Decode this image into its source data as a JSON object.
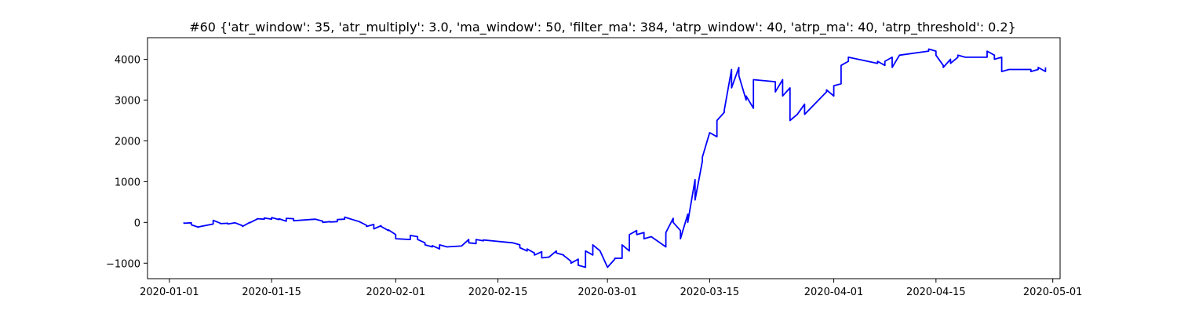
{
  "chart_data": {
    "type": "line",
    "title": "#60 {'atr_window': 35, 'atr_multiply': 3.0, 'ma_window': 50, 'filter_ma': 384, 'atrp_window': 40, 'atrp_ma': 40, 'atrp_threshold': 0.2}",
    "xlabel": "",
    "ylabel": "",
    "line_color": "#0000ff",
    "grid": false,
    "xlim": [
      "2019-12-29",
      "2020-05-02"
    ],
    "ylim": [
      -1380,
      4530
    ],
    "x_ticks": [
      "2020-01-01",
      "2020-01-15",
      "2020-02-01",
      "2020-02-15",
      "2020-03-01",
      "2020-03-15",
      "2020-04-01",
      "2020-04-15",
      "2020-05-01"
    ],
    "y_ticks": [
      -1000,
      0,
      1000,
      2000,
      3000,
      4000
    ],
    "y_tick_labels": [
      "−1000",
      "0",
      "1000",
      "2000",
      "3000",
      "4000"
    ],
    "series": [
      {
        "x": [
          "2020-01-03",
          "2020-01-03",
          "2020-01-04",
          "2020-01-04",
          "2020-01-05",
          "2020-01-05",
          "2020-01-07",
          "2020-01-07",
          "2020-01-08",
          "2020-01-08",
          "2020-01-09",
          "2020-01-09",
          "2020-01-10",
          "2020-01-11",
          "2020-01-11",
          "2020-01-12",
          "2020-01-12",
          "2020-01-13",
          "2020-01-13",
          "2020-01-14",
          "2020-01-14",
          "2020-01-15",
          "2020-01-15",
          "2020-01-16",
          "2020-01-16",
          "2020-01-17",
          "2020-01-17",
          "2020-01-18",
          "2020-01-18",
          "2020-01-21",
          "2020-01-22",
          "2020-01-22",
          "2020-01-23",
          "2020-01-23",
          "2020-01-24",
          "2020-01-24",
          "2020-01-25",
          "2020-01-25",
          "2020-01-27",
          "2020-01-28",
          "2020-01-28",
          "2020-01-29",
          "2020-01-29",
          "2020-01-30",
          "2020-01-30",
          "2020-01-31",
          "2020-01-31",
          "2020-02-01",
          "2020-02-01",
          "2020-02-03",
          "2020-02-03",
          "2020-02-04",
          "2020-02-04",
          "2020-02-05",
          "2020-02-05",
          "2020-02-06",
          "2020-02-06",
          "2020-02-07",
          "2020-02-07",
          "2020-02-08",
          "2020-02-10",
          "2020-02-11",
          "2020-02-11",
          "2020-02-12",
          "2020-02-12",
          "2020-02-13",
          "2020-02-13",
          "2020-02-17",
          "2020-02-18",
          "2020-02-18",
          "2020-02-19",
          "2020-02-19",
          "2020-02-20",
          "2020-02-20",
          "2020-02-21",
          "2020-02-21",
          "2020-02-22",
          "2020-02-23",
          "2020-02-23",
          "2020-02-24",
          "2020-02-24",
          "2020-02-25",
          "2020-02-25",
          "2020-02-26",
          "2020-02-26",
          "2020-02-27",
          "2020-02-27",
          "2020-02-28",
          "2020-02-28",
          "2020-02-29",
          "2020-03-01",
          "2020-03-02",
          "2020-03-02",
          "2020-03-03",
          "2020-03-03",
          "2020-03-04",
          "2020-03-04",
          "2020-03-05",
          "2020-03-05",
          "2020-03-06",
          "2020-03-06",
          "2020-03-07",
          "2020-03-09",
          "2020-03-09",
          "2020-03-10",
          "2020-03-10",
          "2020-03-11",
          "2020-03-11",
          "2020-03-12",
          "2020-03-12",
          "2020-03-13",
          "2020-03-13",
          "2020-03-14",
          "2020-03-14",
          "2020-03-15",
          "2020-03-16",
          "2020-03-16",
          "2020-03-17",
          "2020-03-17",
          "2020-03-18",
          "2020-03-18",
          "2020-03-19",
          "2020-03-19",
          "2020-03-20",
          "2020-03-20",
          "2020-03-21",
          "2020-03-21",
          "2020-03-24",
          "2020-03-24",
          "2020-03-25",
          "2020-03-25",
          "2020-03-26",
          "2020-03-26",
          "2020-03-27",
          "2020-03-27",
          "2020-03-28",
          "2020-03-28",
          "2020-03-31",
          "2020-03-31",
          "2020-04-01",
          "2020-04-01",
          "2020-04-02",
          "2020-04-02",
          "2020-04-03",
          "2020-04-03",
          "2020-04-07",
          "2020-04-07",
          "2020-04-08",
          "2020-04-08",
          "2020-04-09",
          "2020-04-09",
          "2020-04-10",
          "2020-04-14",
          "2020-04-14",
          "2020-04-15",
          "2020-04-15",
          "2020-04-16",
          "2020-04-16",
          "2020-04-17",
          "2020-04-17",
          "2020-04-18",
          "2020-04-18",
          "2020-04-19",
          "2020-04-22",
          "2020-04-22",
          "2020-04-23",
          "2020-04-23",
          "2020-04-24",
          "2020-04-24",
          "2020-04-25",
          "2020-04-28",
          "2020-04-28",
          "2020-04-29",
          "2020-04-29",
          "2020-04-30",
          "2020-04-30"
        ],
        "y": [
          0,
          -20,
          -10,
          -60,
          -120,
          -110,
          -40,
          50,
          -20,
          -30,
          -20,
          -40,
          -10,
          -80,
          -100,
          0,
          -10,
          80,
          90,
          80,
          110,
          80,
          120,
          70,
          90,
          30,
          100,
          90,
          40,
          80,
          30,
          0,
          20,
          10,
          20,
          70,
          80,
          130,
          20,
          -70,
          -100,
          -50,
          -160,
          -80,
          -100,
          -200,
          -180,
          -300,
          -400,
          -420,
          -320,
          -350,
          -420,
          -500,
          -550,
          -600,
          -570,
          -650,
          -550,
          -600,
          -580,
          -420,
          -500,
          -520,
          -420,
          -450,
          -430,
          -500,
          -550,
          -620,
          -700,
          -650,
          -750,
          -800,
          -720,
          -870,
          -850,
          -700,
          -750,
          -800,
          -810,
          -950,
          -1000,
          -900,
          -1050,
          -1100,
          -700,
          -800,
          -550,
          -700,
          -1100,
          -900,
          -880,
          -880,
          -550,
          -700,
          -300,
          -200,
          -300,
          -250,
          -400,
          -350,
          -600,
          -250,
          100,
          0,
          -200,
          -400,
          200,
          0,
          1050,
          550,
          1500,
          1600,
          2200,
          2100,
          2500,
          2700,
          2750,
          3750,
          3300,
          3800,
          3600,
          3000,
          3100,
          2800,
          3500,
          3450,
          3200,
          3500,
          3100,
          3300,
          2500,
          2650,
          2650,
          2900,
          2650,
          3200,
          3250,
          3100,
          3350,
          3400,
          3850,
          3950,
          4050,
          3900,
          3950,
          3850,
          3950,
          4050,
          3800,
          4100,
          4200,
          4250,
          4200,
          4100,
          3850,
          3800,
          4000,
          3900,
          4050,
          4100,
          4050,
          4050,
          4200,
          4100,
          4000,
          4050,
          3700,
          3750,
          3750,
          3700,
          3750,
          3800,
          3700,
          3800
        ]
      }
    ]
  }
}
